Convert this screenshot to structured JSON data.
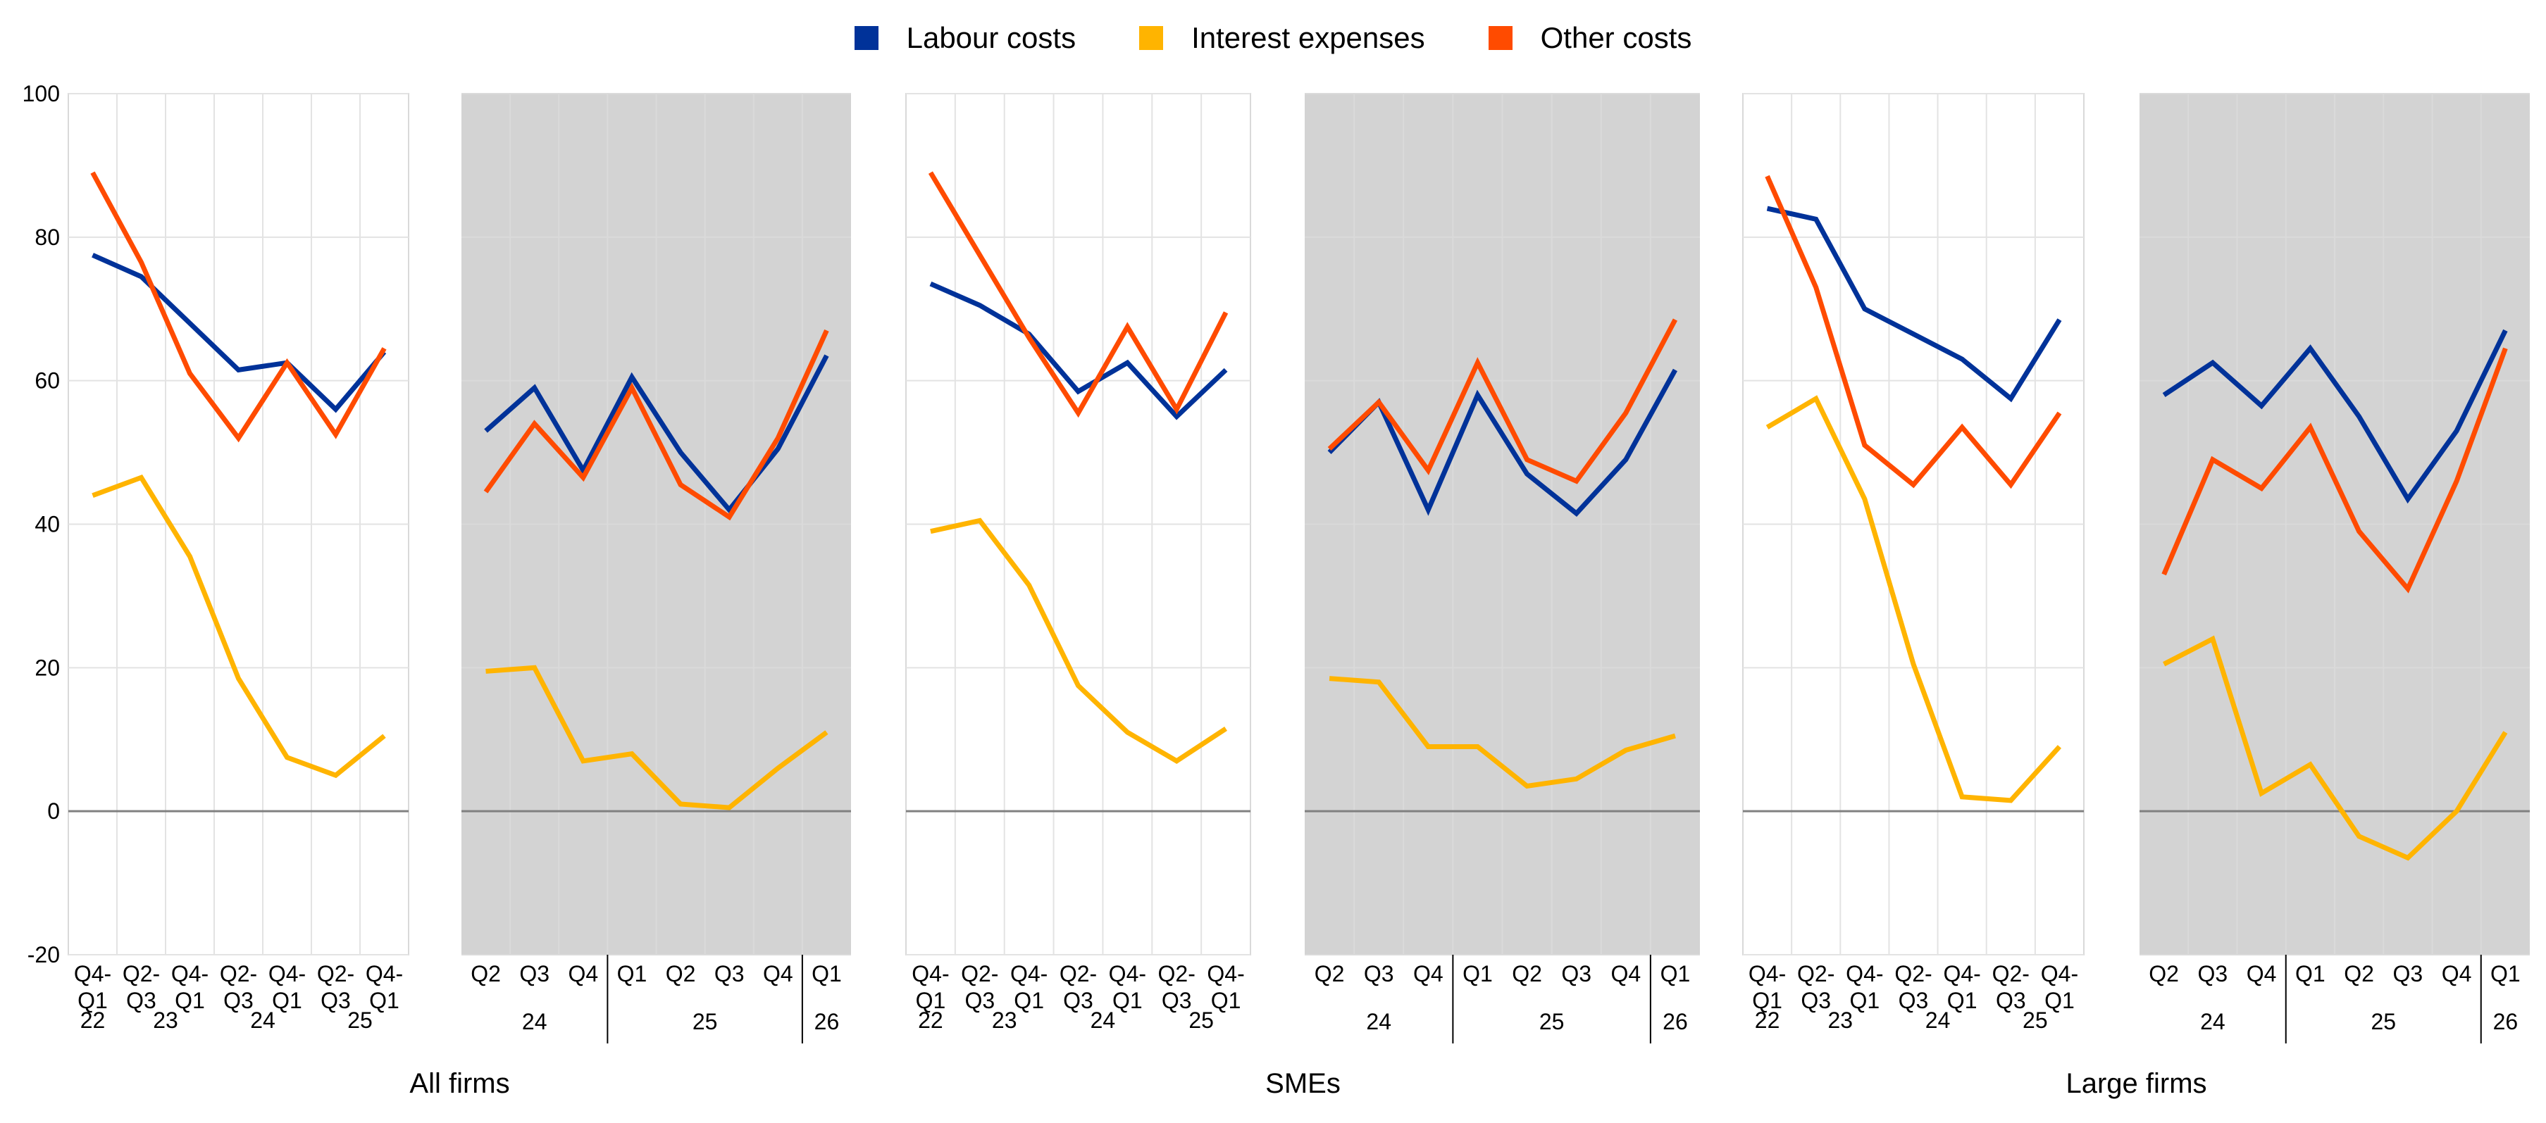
{
  "legend": [
    {
      "label": "Labour costs",
      "color": "#003299"
    },
    {
      "label": "Interest expenses",
      "color": "#ffb400"
    },
    {
      "label": "Other costs",
      "color": "#ff4b00"
    }
  ],
  "y_ticks": [
    "100",
    "80",
    "60",
    "40",
    "20",
    "0",
    "-20"
  ],
  "chart_data": [
    {
      "type": "line",
      "group": "All firms",
      "kind": "semiannual",
      "ylim": [
        -20,
        100
      ],
      "grid": true,
      "categories": [
        [
          "Q4-",
          "Q1"
        ],
        [
          "Q2-",
          "Q3"
        ],
        [
          "Q4-",
          "Q1"
        ],
        [
          "Q2-",
          "Q3"
        ],
        [
          "Q4-",
          "Q1"
        ],
        [
          "Q2-",
          "Q3"
        ],
        [
          "Q4-",
          "Q1"
        ]
      ],
      "years": [
        {
          "label": "22",
          "pos": 0
        },
        {
          "label": "23",
          "pos": 1.5
        },
        {
          "label": "24",
          "pos": 3.5
        },
        {
          "label": "25",
          "pos": 5.5
        }
      ],
      "series": [
        {
          "name": "Labour costs",
          "values": [
            77.5,
            74.5,
            68,
            61.5,
            62.5,
            56,
            64
          ]
        },
        {
          "name": "Interest expenses",
          "values": [
            44,
            46.5,
            35.5,
            18.5,
            7.5,
            5,
            10.5
          ]
        },
        {
          "name": "Other costs",
          "values": [
            89,
            76.5,
            61,
            52,
            62.5,
            52.5,
            64.5
          ]
        }
      ]
    },
    {
      "type": "line",
      "group": "All firms",
      "kind": "quarterly",
      "ylim": [
        -20,
        100
      ],
      "grid": true,
      "shaded": true,
      "categories": [
        "Q2",
        "Q3",
        "Q4",
        "Q1",
        "Q2",
        "Q3",
        "Q4",
        "Q1"
      ],
      "years": [
        {
          "label": "24",
          "pos": 1
        },
        {
          "label": "25",
          "pos": 4.5
        },
        {
          "label": "26",
          "pos": 7
        }
      ],
      "separators": [
        2.5,
        6.5
      ],
      "series": [
        {
          "name": "Labour costs",
          "values": [
            53,
            59,
            47.5,
            60.5,
            50,
            42,
            50.5,
            63.5
          ]
        },
        {
          "name": "Interest expenses",
          "values": [
            19.5,
            20,
            7,
            8,
            1,
            0.5,
            6,
            11
          ]
        },
        {
          "name": "Other costs",
          "values": [
            44.5,
            54,
            46.5,
            59,
            45.5,
            41,
            52,
            67
          ]
        }
      ]
    },
    {
      "type": "line",
      "group": "SMEs",
      "kind": "semiannual",
      "ylim": [
        -20,
        100
      ],
      "grid": true,
      "categories": [
        [
          "Q4-",
          "Q1"
        ],
        [
          "Q2-",
          "Q3"
        ],
        [
          "Q4-",
          "Q1"
        ],
        [
          "Q2-",
          "Q3"
        ],
        [
          "Q4-",
          "Q1"
        ],
        [
          "Q2-",
          "Q3"
        ],
        [
          "Q4-",
          "Q1"
        ]
      ],
      "years": [
        {
          "label": "22",
          "pos": 0
        },
        {
          "label": "23",
          "pos": 1.5
        },
        {
          "label": "24",
          "pos": 3.5
        },
        {
          "label": "25",
          "pos": 5.5
        }
      ],
      "series": [
        {
          "name": "Labour costs",
          "values": [
            73.5,
            70.5,
            66.5,
            58.5,
            62.5,
            55,
            61.5
          ]
        },
        {
          "name": "Interest expenses",
          "values": [
            39,
            40.5,
            31.5,
            17.5,
            11,
            7,
            11.5
          ]
        },
        {
          "name": "Other costs",
          "values": [
            89,
            77.5,
            66,
            55.5,
            67.5,
            56,
            69.5
          ]
        }
      ]
    },
    {
      "type": "line",
      "group": "SMEs",
      "kind": "quarterly",
      "ylim": [
        -20,
        100
      ],
      "grid": true,
      "shaded": true,
      "categories": [
        "Q2",
        "Q3",
        "Q4",
        "Q1",
        "Q2",
        "Q3",
        "Q4",
        "Q1"
      ],
      "years": [
        {
          "label": "24",
          "pos": 1
        },
        {
          "label": "25",
          "pos": 4.5
        },
        {
          "label": "26",
          "pos": 7
        }
      ],
      "separators": [
        2.5,
        6.5
      ],
      "series": [
        {
          "name": "Labour costs",
          "values": [
            50,
            57,
            42,
            58,
            47,
            41.5,
            49,
            61.5
          ]
        },
        {
          "name": "Interest expenses",
          "values": [
            18.5,
            18,
            9,
            9,
            3.5,
            4.5,
            8.5,
            10.5
          ]
        },
        {
          "name": "Other costs",
          "values": [
            50.5,
            57,
            47.5,
            62.5,
            49,
            46,
            55.5,
            68.5
          ]
        }
      ]
    },
    {
      "type": "line",
      "group": "Large firms",
      "kind": "semiannual",
      "ylim": [
        -20,
        100
      ],
      "grid": true,
      "categories": [
        [
          "Q4-",
          "Q1"
        ],
        [
          "Q2-",
          "Q3"
        ],
        [
          "Q4-",
          "Q1"
        ],
        [
          "Q2-",
          "Q3"
        ],
        [
          "Q4-",
          "Q1"
        ],
        [
          "Q2-",
          "Q3"
        ],
        [
          "Q4-",
          "Q1"
        ]
      ],
      "years": [
        {
          "label": "22",
          "pos": 0
        },
        {
          "label": "23",
          "pos": 1.5
        },
        {
          "label": "24",
          "pos": 3.5
        },
        {
          "label": "25",
          "pos": 5.5
        }
      ],
      "series": [
        {
          "name": "Labour costs",
          "values": [
            84,
            82.5,
            70,
            66.5,
            63,
            57.5,
            68.5
          ]
        },
        {
          "name": "Interest expenses",
          "values": [
            53.5,
            57.5,
            43.5,
            20.5,
            2,
            1.5,
            9
          ]
        },
        {
          "name": "Other costs",
          "values": [
            88.5,
            73,
            51,
            45.5,
            53.5,
            45.5,
            55.5
          ]
        }
      ]
    },
    {
      "type": "line",
      "group": "Large firms",
      "kind": "quarterly",
      "ylim": [
        -20,
        100
      ],
      "grid": true,
      "shaded": true,
      "categories": [
        "Q2",
        "Q3",
        "Q4",
        "Q1",
        "Q2",
        "Q3",
        "Q4",
        "Q1"
      ],
      "years": [
        {
          "label": "24",
          "pos": 1
        },
        {
          "label": "25",
          "pos": 4.5
        },
        {
          "label": "26",
          "pos": 7
        }
      ],
      "separators": [
        2.5,
        6.5
      ],
      "series": [
        {
          "name": "Labour costs",
          "values": [
            58,
            62.5,
            56.5,
            64.5,
            55,
            43.5,
            53,
            67
          ]
        },
        {
          "name": "Interest expenses",
          "values": [
            20.5,
            24,
            2.5,
            6.5,
            -3.5,
            -6.5,
            0,
            11
          ]
        },
        {
          "name": "Other costs",
          "values": [
            33,
            49,
            45,
            53.5,
            39,
            31,
            46,
            64.5
          ]
        }
      ]
    }
  ],
  "group_titles": [
    "All firms",
    "SMEs",
    "Large firms"
  ]
}
